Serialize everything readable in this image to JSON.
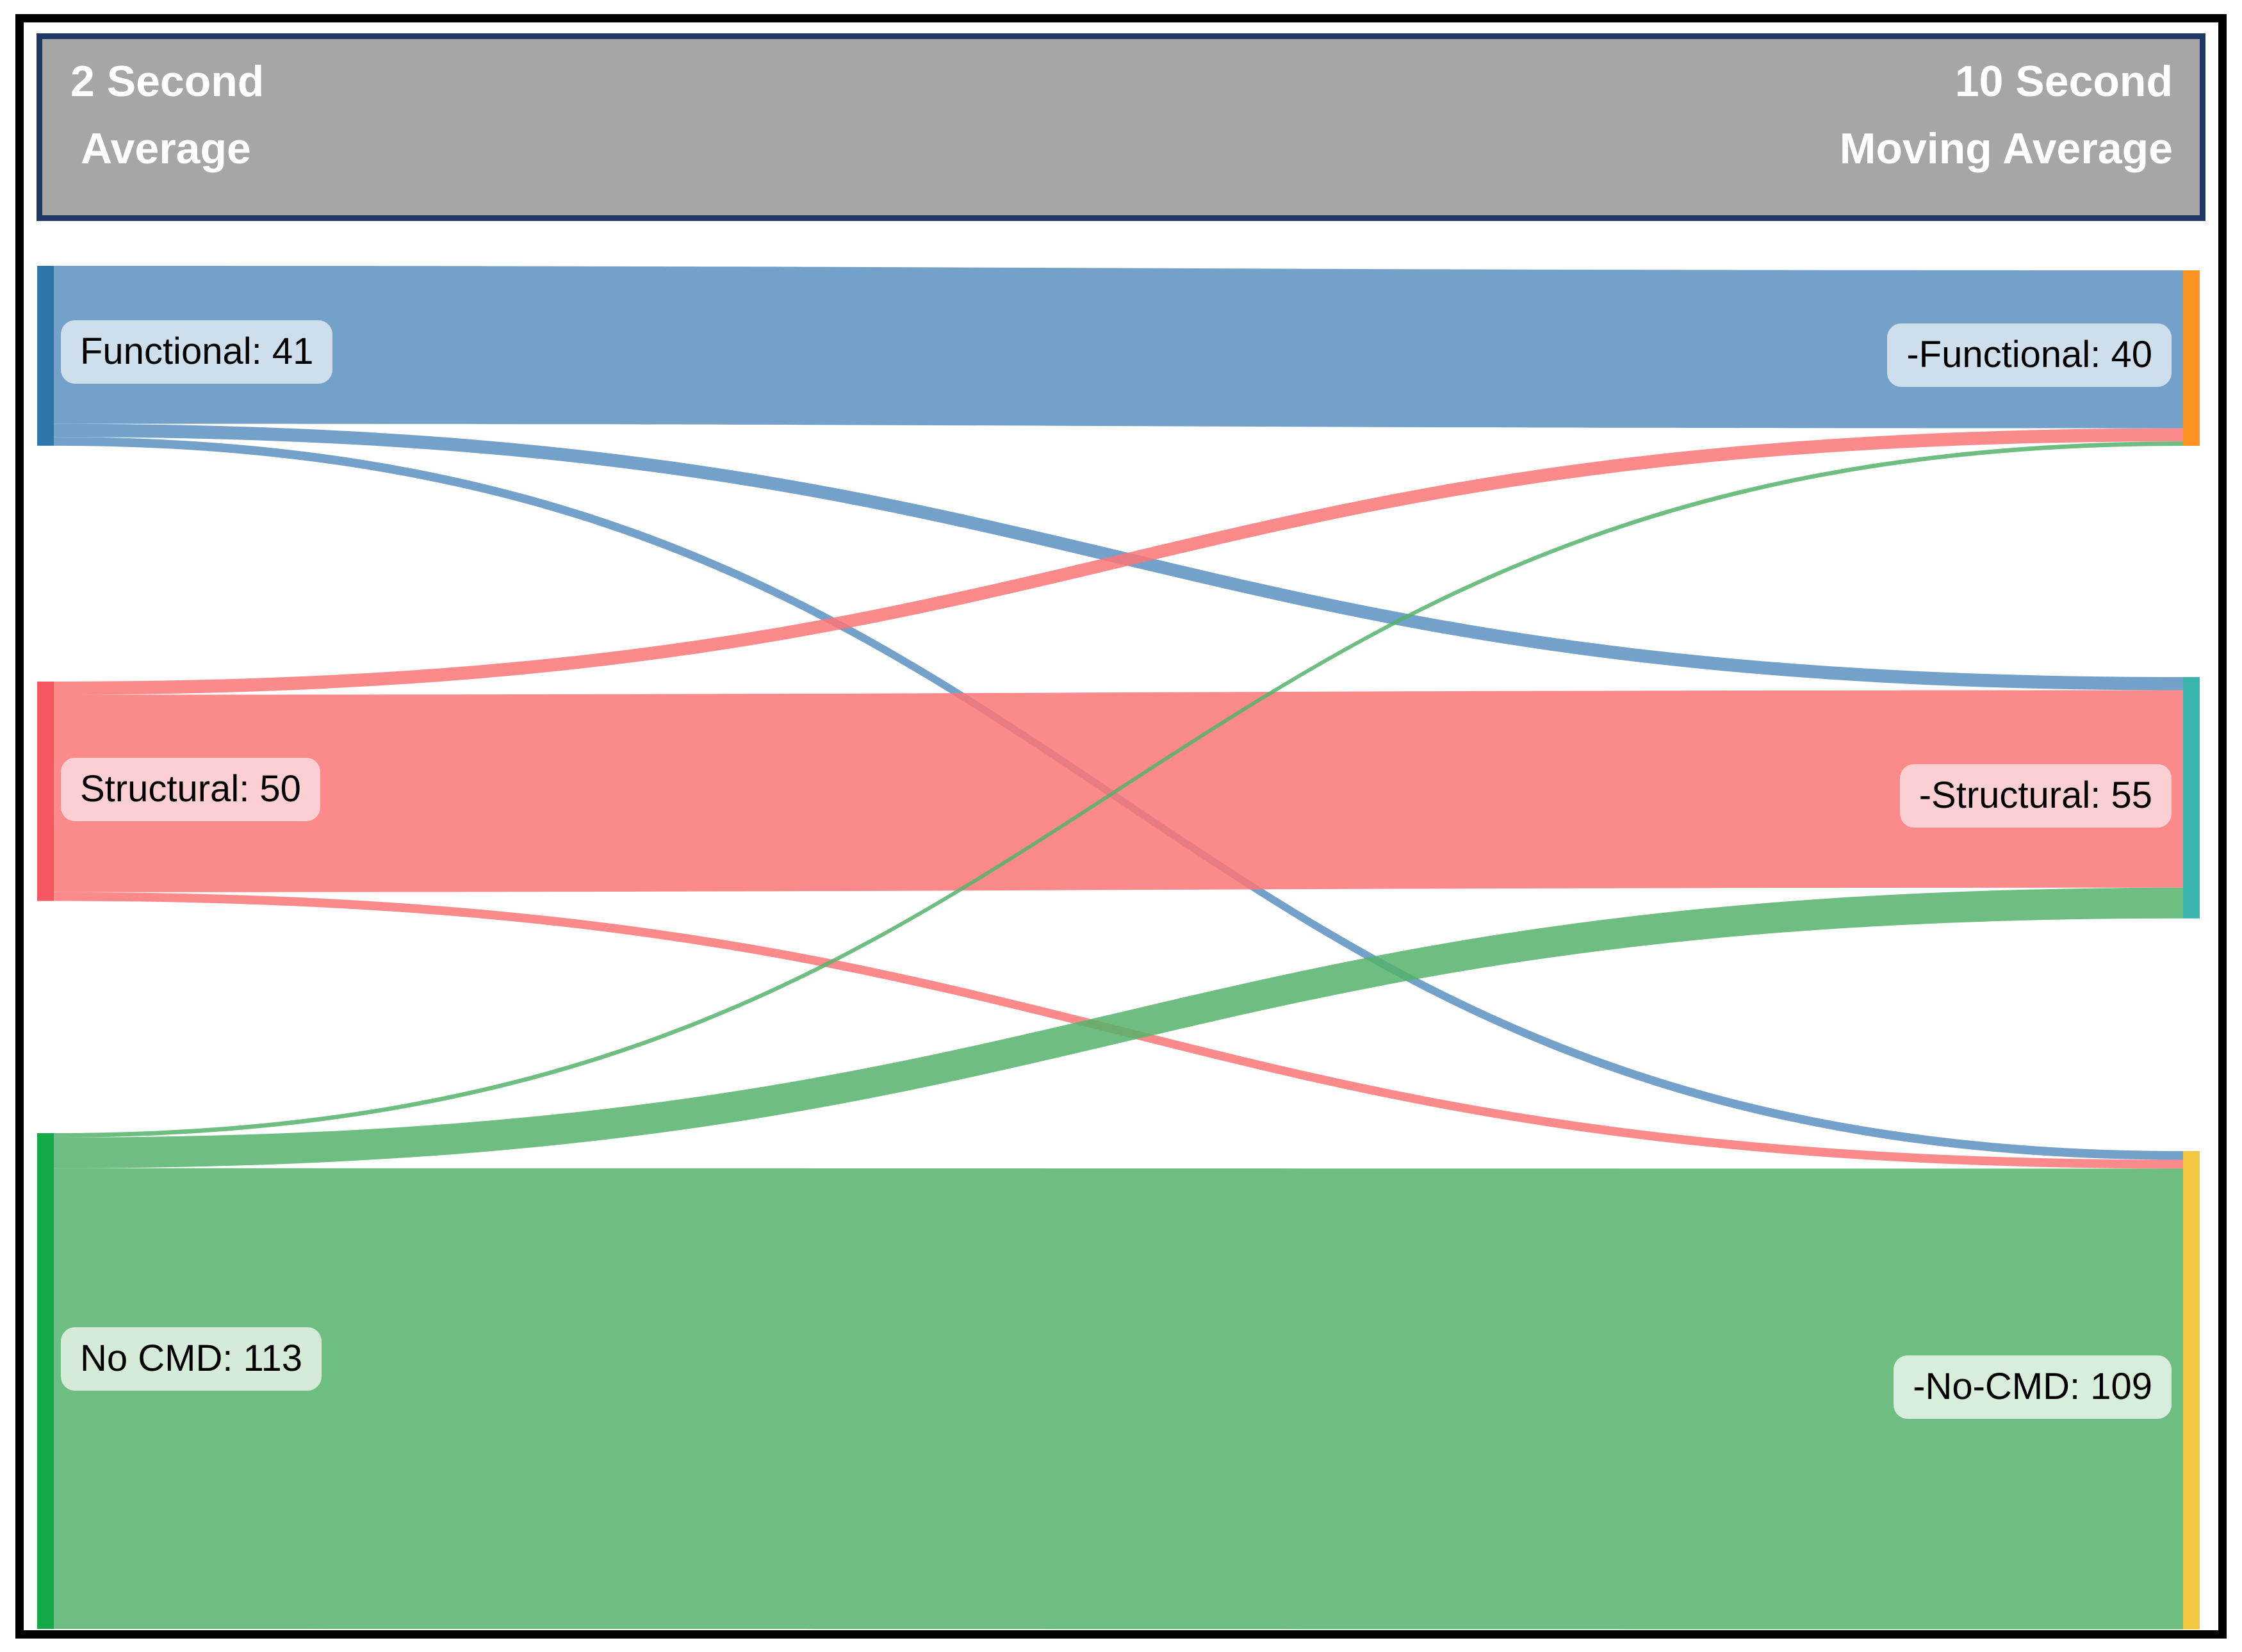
{
  "header": {
    "left_line1": "2 Second",
    "left_line2": "Average",
    "right_line1": "10 Second",
    "right_line2": "Moving Average"
  },
  "labels": {
    "functional": "Functional: 41",
    "structural": "Structural: 50",
    "no_cmd": "No CMD: 113",
    "out_functional": "-Functional: 40",
    "out_structural": "-Structural: 55",
    "out_no_cmd": "-No-CMD: 109"
  },
  "chart_data": {
    "type": "sankey",
    "orientation": "left-to-right",
    "left_column_label": "2 Second Average",
    "right_column_label": "10 Second Moving Average",
    "left_nodes": [
      {
        "name": "Functional",
        "value": 41,
        "bar_color": "#2e77ab",
        "flow_color": "#5c91bf",
        "label_bg": "#cfdeeb"
      },
      {
        "name": "Structural",
        "value": 50,
        "bar_color": "#f4575f",
        "flow_color": "#fd7676",
        "label_bg": "#fccfd3"
      },
      {
        "name": "No CMD",
        "value": 113,
        "bar_color": "#16a94a",
        "flow_color": "#54b36a",
        "label_bg": "#d5ead8"
      }
    ],
    "right_nodes": [
      {
        "name": "-Functional",
        "value": 40,
        "bar_color": "#fb9322"
      },
      {
        "name": "-Structural",
        "value": 55,
        "bar_color": "#3ab5ad"
      },
      {
        "name": "-No-CMD",
        "value": 109,
        "bar_color": "#f3c73f"
      }
    ],
    "links": [
      {
        "source": "Functional",
        "target": "-Functional",
        "value": 36
      },
      {
        "source": "Functional",
        "target": "-Structural",
        "value": 3
      },
      {
        "source": "Functional",
        "target": "-No-CMD",
        "value": 2
      },
      {
        "source": "Structural",
        "target": "-Functional",
        "value": 3
      },
      {
        "source": "Structural",
        "target": "-Structural",
        "value": 45
      },
      {
        "source": "Structural",
        "target": "-No-CMD",
        "value": 2
      },
      {
        "source": "No CMD",
        "target": "-Functional",
        "value": 1
      },
      {
        "source": "No CMD",
        "target": "-Structural",
        "value": 7
      },
      {
        "source": "No CMD",
        "target": "-No-CMD",
        "value": 105
      }
    ]
  }
}
